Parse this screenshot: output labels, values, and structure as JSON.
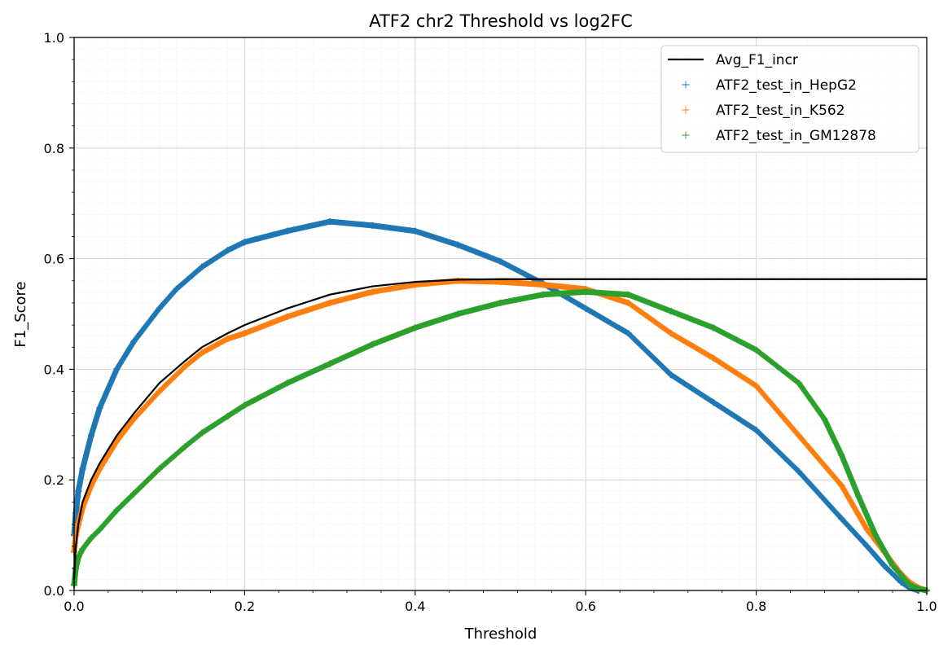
{
  "chart_data": {
    "type": "scatter",
    "title": "ATF2 chr2 Threshold vs log2FC",
    "xlabel": "Threshold",
    "ylabel": "F1_Score",
    "xlim": [
      0,
      1
    ],
    "ylim": [
      0,
      1
    ],
    "xticks": [
      "0.0",
      "0.2",
      "0.4",
      "0.6",
      "0.8",
      "1.0"
    ],
    "yticks": [
      "0.0",
      "0.2",
      "0.4",
      "0.6",
      "0.8",
      "1.0"
    ],
    "grid": true,
    "minor_grid": true,
    "legend_position": "top-right",
    "line": {
      "name": "Avg_F1_incr",
      "color": "#000000",
      "x": [
        0,
        0.002,
        0.005,
        0.01,
        0.02,
        0.03,
        0.05,
        0.07,
        0.1,
        0.13,
        0.15,
        0.18,
        0.2,
        0.25,
        0.3,
        0.35,
        0.4,
        0.45,
        0.5,
        0.55,
        0.6,
        0.7,
        0.8,
        0.9,
        1.0
      ],
      "y": [
        0.02,
        0.08,
        0.12,
        0.16,
        0.2,
        0.23,
        0.28,
        0.32,
        0.375,
        0.415,
        0.44,
        0.465,
        0.48,
        0.51,
        0.535,
        0.55,
        0.558,
        0.562,
        0.563,
        0.563,
        0.563,
        0.563,
        0.563,
        0.563,
        0.563
      ]
    },
    "series": [
      {
        "name": "ATF2_test_in_HepG2",
        "color": "#1f77b4",
        "x": [
          0,
          0.002,
          0.005,
          0.01,
          0.02,
          0.03,
          0.05,
          0.07,
          0.1,
          0.12,
          0.15,
          0.18,
          0.2,
          0.25,
          0.3,
          0.35,
          0.4,
          0.45,
          0.5,
          0.55,
          0.6,
          0.65,
          0.7,
          0.75,
          0.8,
          0.85,
          0.9,
          0.93,
          0.95,
          0.97,
          0.98,
          0.99
        ],
        "y": [
          0.1,
          0.14,
          0.18,
          0.22,
          0.28,
          0.33,
          0.4,
          0.45,
          0.51,
          0.545,
          0.585,
          0.615,
          0.63,
          0.65,
          0.667,
          0.66,
          0.65,
          0.625,
          0.595,
          0.555,
          0.51,
          0.465,
          0.39,
          0.34,
          0.29,
          0.215,
          0.13,
          0.08,
          0.045,
          0.015,
          0.005,
          0.0
        ]
      },
      {
        "name": "ATF2_test_in_K562",
        "color": "#ff7f0e",
        "x": [
          0,
          0.002,
          0.005,
          0.01,
          0.02,
          0.03,
          0.05,
          0.07,
          0.1,
          0.13,
          0.15,
          0.18,
          0.2,
          0.25,
          0.3,
          0.35,
          0.4,
          0.45,
          0.5,
          0.55,
          0.6,
          0.65,
          0.7,
          0.75,
          0.8,
          0.85,
          0.9,
          0.93,
          0.95,
          0.97,
          0.98,
          0.99,
          1.0
        ],
        "y": [
          0.07,
          0.1,
          0.12,
          0.15,
          0.19,
          0.22,
          0.27,
          0.31,
          0.36,
          0.405,
          0.43,
          0.455,
          0.465,
          0.495,
          0.52,
          0.54,
          0.553,
          0.56,
          0.558,
          0.553,
          0.545,
          0.52,
          0.465,
          0.42,
          0.37,
          0.28,
          0.19,
          0.11,
          0.07,
          0.03,
          0.015,
          0.005,
          0.0
        ]
      },
      {
        "name": "ATF2_test_in_GM12878",
        "color": "#2ca02c",
        "x": [
          0,
          0.002,
          0.005,
          0.01,
          0.02,
          0.03,
          0.05,
          0.07,
          0.1,
          0.13,
          0.15,
          0.18,
          0.2,
          0.25,
          0.3,
          0.35,
          0.4,
          0.45,
          0.5,
          0.55,
          0.6,
          0.65,
          0.7,
          0.75,
          0.8,
          0.85,
          0.88,
          0.9,
          0.92,
          0.94,
          0.96,
          0.98,
          0.99,
          1.0
        ],
        "y": [
          0.01,
          0.04,
          0.06,
          0.075,
          0.095,
          0.11,
          0.145,
          0.175,
          0.22,
          0.26,
          0.285,
          0.315,
          0.335,
          0.375,
          0.41,
          0.445,
          0.475,
          0.5,
          0.52,
          0.535,
          0.54,
          0.535,
          0.505,
          0.475,
          0.435,
          0.375,
          0.31,
          0.245,
          0.17,
          0.1,
          0.045,
          0.01,
          0.003,
          0.0
        ]
      }
    ]
  }
}
